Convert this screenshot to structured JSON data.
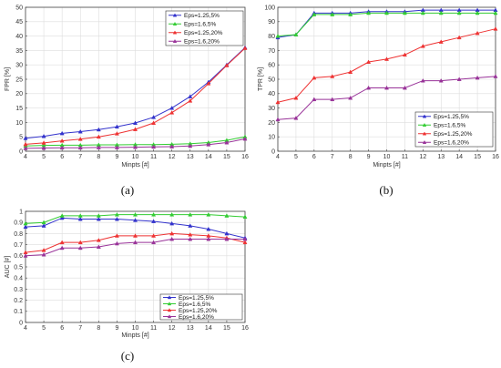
{
  "chart_data": [
    {
      "type": "line",
      "caption": "(a)",
      "xlabel": "Minpts [#]",
      "ylabel": "FPR [%]",
      "xlim": [
        4,
        16
      ],
      "ylim": [
        0,
        50
      ],
      "x": [
        4,
        5,
        6,
        7,
        8,
        9,
        10,
        11,
        12,
        13,
        14,
        15,
        16
      ],
      "xticks": [
        4,
        5,
        6,
        7,
        8,
        9,
        10,
        11,
        12,
        13,
        14,
        15,
        16
      ],
      "yticks": [
        0,
        5,
        10,
        15,
        20,
        25,
        30,
        35,
        40,
        45,
        50
      ],
      "grid": true,
      "legend_position": "top-right",
      "series": [
        {
          "name": "Eps=1.25,5%",
          "color": "#3333cc",
          "values": [
            4.5,
            5.2,
            6.2,
            6.8,
            7.5,
            8.5,
            9.8,
            11.8,
            15,
            19,
            24,
            30,
            36
          ]
        },
        {
          "name": "Eps=1.6,5%",
          "color": "#33cc33",
          "values": [
            1.8,
            2.0,
            2.1,
            2.1,
            2.2,
            2.2,
            2.3,
            2.3,
            2.4,
            2.6,
            3.0,
            3.8,
            5.0
          ]
        },
        {
          "name": "Eps=1.25,20%",
          "color": "#ee3333",
          "values": [
            2.4,
            2.9,
            3.6,
            4.2,
            5.0,
            6.1,
            7.6,
            9.8,
            13.4,
            17.5,
            23.5,
            29.8,
            35.8
          ]
        },
        {
          "name": "Eps=1.6,20%",
          "color": "#993399",
          "values": [
            1.0,
            1.1,
            1.2,
            1.2,
            1.3,
            1.3,
            1.4,
            1.5,
            1.6,
            1.8,
            2.3,
            3.0,
            4.3
          ]
        }
      ]
    },
    {
      "type": "line",
      "caption": "(b)",
      "xlabel": "Minpts [#]",
      "ylabel": "TPR [%]",
      "xlim": [
        4,
        16
      ],
      "ylim": [
        0,
        100
      ],
      "x": [
        4,
        5,
        6,
        7,
        8,
        9,
        10,
        11,
        12,
        13,
        14,
        15,
        16
      ],
      "xticks": [
        4,
        5,
        6,
        7,
        8,
        9,
        10,
        11,
        12,
        13,
        14,
        15,
        16
      ],
      "yticks": [
        0,
        10,
        20,
        30,
        40,
        50,
        60,
        70,
        80,
        90,
        100
      ],
      "grid": true,
      "legend_position": "bottom-right",
      "series": [
        {
          "name": "Eps=1.25,5%",
          "color": "#3333cc",
          "values": [
            79,
            81,
            96,
            96,
            96,
            97,
            97,
            97,
            98,
            98,
            98,
            98,
            98
          ]
        },
        {
          "name": "Eps=1.6,5%",
          "color": "#33cc33",
          "values": [
            80,
            81,
            95,
            95,
            95,
            96,
            96,
            96,
            96,
            96,
            96,
            96,
            96
          ]
        },
        {
          "name": "Eps=1.25,20%",
          "color": "#ee3333",
          "values": [
            34,
            37,
            51,
            52,
            55,
            62,
            64,
            67,
            73,
            76,
            79,
            82,
            85
          ]
        },
        {
          "name": "Eps=1.6,20%",
          "color": "#993399",
          "values": [
            22,
            23,
            36,
            36,
            37,
            44,
            44,
            44,
            49,
            49,
            50,
            51,
            52
          ]
        }
      ]
    },
    {
      "type": "line",
      "caption": "(c)",
      "xlabel": "Minpts [#]",
      "ylabel": "AUC [#]",
      "xlim": [
        4,
        16
      ],
      "ylim": [
        0,
        1
      ],
      "x": [
        4,
        5,
        6,
        7,
        8,
        9,
        10,
        11,
        12,
        13,
        14,
        15,
        16
      ],
      "xticks": [
        4,
        5,
        6,
        7,
        8,
        9,
        10,
        11,
        12,
        13,
        14,
        15,
        16
      ],
      "yticks": [
        0,
        0.1,
        0.2,
        0.3,
        0.4,
        0.5,
        0.6,
        0.7,
        0.8,
        0.9,
        1
      ],
      "grid": true,
      "legend_position": "bottom-right",
      "series": [
        {
          "name": "Eps=1.25,5%",
          "color": "#3333cc",
          "values": [
            0.86,
            0.87,
            0.94,
            0.93,
            0.93,
            0.93,
            0.92,
            0.91,
            0.89,
            0.87,
            0.84,
            0.8,
            0.76
          ]
        },
        {
          "name": "Eps=1.6,5%",
          "color": "#33cc33",
          "values": [
            0.89,
            0.9,
            0.96,
            0.96,
            0.96,
            0.97,
            0.97,
            0.97,
            0.97,
            0.97,
            0.97,
            0.96,
            0.95
          ]
        },
        {
          "name": "Eps=1.25,20%",
          "color": "#ee3333",
          "values": [
            0.63,
            0.65,
            0.72,
            0.72,
            0.74,
            0.78,
            0.78,
            0.78,
            0.8,
            0.79,
            0.78,
            0.76,
            0.72
          ]
        },
        {
          "name": "Eps=1.6,20%",
          "color": "#993399",
          "values": [
            0.6,
            0.61,
            0.67,
            0.67,
            0.68,
            0.71,
            0.72,
            0.72,
            0.75,
            0.75,
            0.75,
            0.75,
            0.75
          ]
        }
      ]
    }
  ]
}
